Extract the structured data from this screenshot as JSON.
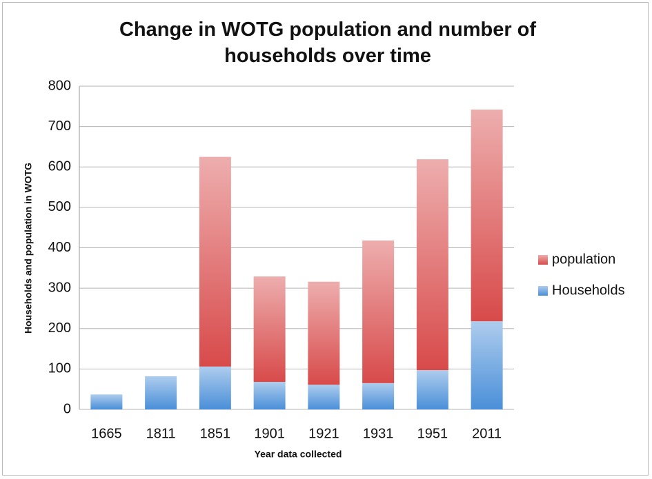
{
  "chart_data": {
    "type": "stacked-bar",
    "title": "Change in WOTG population and number of households over time",
    "x_label": "Year data collected",
    "y_label": "Households and population in WOTG",
    "categories": [
      "1665",
      "1811",
      "1851",
      "1901",
      "1921",
      "1931",
      "1951",
      "2011"
    ],
    "series": [
      {
        "name": "Households",
        "color": "#4a8fd8",
        "values": [
          37,
          82,
          106,
          68,
          61,
          65,
          97,
          218
        ]
      },
      {
        "name": "population",
        "color": "#d84a4a",
        "values": [
          0,
          0,
          519,
          261,
          255,
          353,
          522,
          524
        ]
      }
    ],
    "ylim": [
      0,
      800
    ],
    "yticks": [
      0,
      100,
      200,
      300,
      400,
      500,
      600,
      700,
      800
    ],
    "grid": true,
    "legend": "right"
  }
}
